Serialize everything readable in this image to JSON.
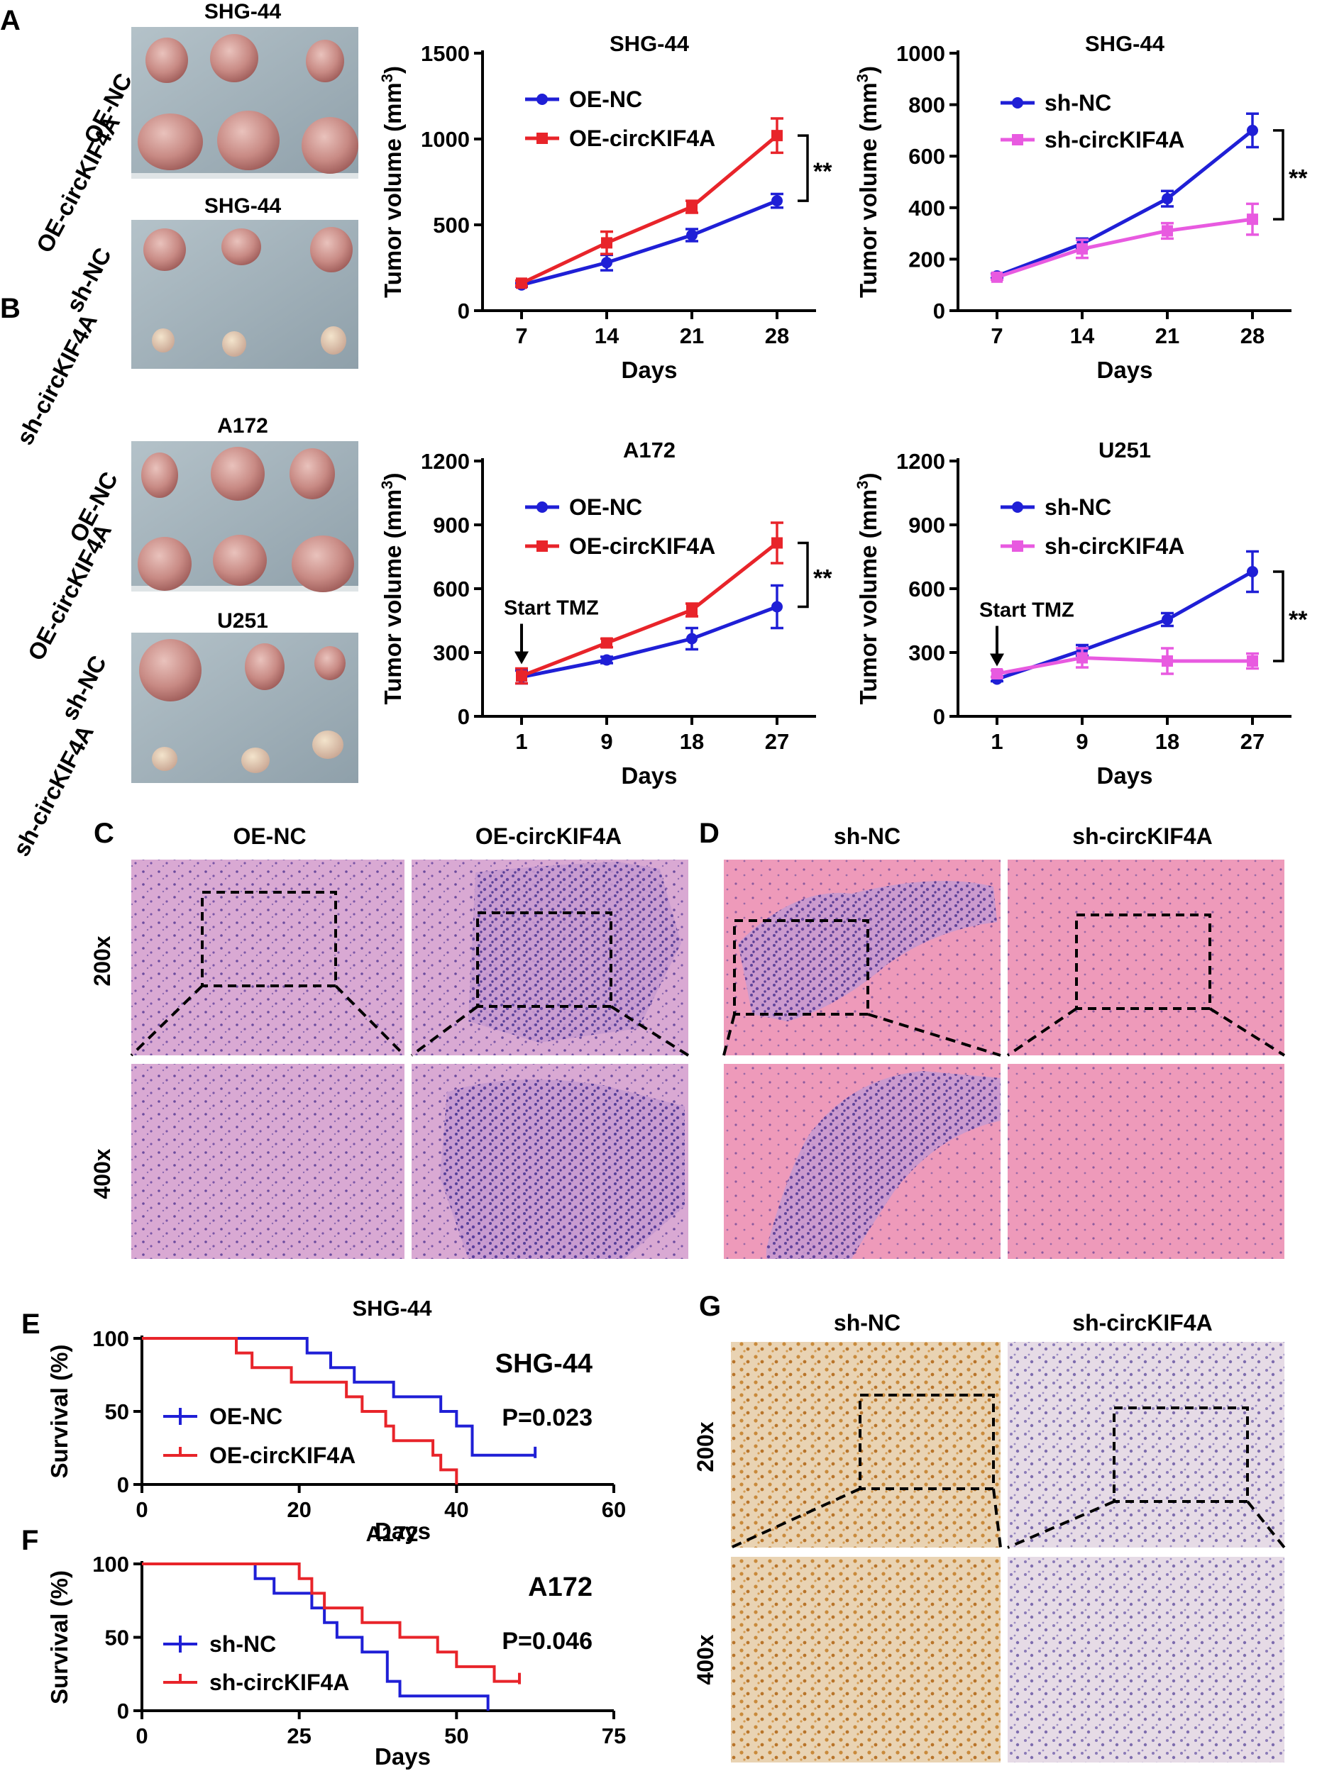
{
  "panels": {
    "A": "A",
    "B": "B",
    "C": "C",
    "D": "D",
    "E": "E",
    "F": "F",
    "G": "G"
  },
  "colors": {
    "blue": "#1f1fd6",
    "red": "#e8242a",
    "pink": "#e85ae0",
    "black": "#000000"
  },
  "photos": {
    "a1": {
      "title": "SHG-44",
      "row1": "OE-NC",
      "row2": "OE-circKIF4A"
    },
    "a2": {
      "title": "SHG-44",
      "row1": "sh-NC",
      "row2": "sh-circKIF4A"
    },
    "b1": {
      "title": "A172",
      "row1": "OE-NC",
      "row2": "OE-circKIF4A"
    },
    "b2": {
      "title": "U251",
      "row1": "sh-NC",
      "row2": "sh-circKIF4A"
    }
  },
  "histology": {
    "c": {
      "col1": "OE-NC",
      "col2": "OE-circKIF4A",
      "row1": "200x",
      "row2": "400x"
    },
    "d": {
      "col1": "sh-NC",
      "col2": "sh-circKIF4A"
    },
    "g": {
      "col1": "sh-NC",
      "col2": "sh-circKIF4A",
      "row1": "200x",
      "row2": "400x"
    }
  },
  "chart_data": [
    {
      "id": "A-left",
      "type": "line",
      "title": "SHG-44",
      "xlabel": "Days",
      "ylabel": "Tumor volume (mm",
      "ylabel_sup": "3",
      "ylabel_close": ")",
      "x": [
        7,
        14,
        21,
        28
      ],
      "ylim": [
        0,
        1500
      ],
      "yticks": [
        0,
        500,
        1000,
        1500
      ],
      "series": [
        {
          "name": "OE-NC",
          "color": "blue",
          "values": [
            150,
            280,
            440,
            640
          ],
          "err": [
            10,
            45,
            35,
            40
          ]
        },
        {
          "name": "OE-circKIF4A",
          "color": "red",
          "values": [
            160,
            395,
            605,
            1020
          ],
          "err": [
            15,
            65,
            35,
            100
          ]
        }
      ],
      "significance": "**"
    },
    {
      "id": "A-right",
      "type": "line",
      "title": "SHG-44",
      "xlabel": "Days",
      "ylabel": "Tumor volume (mm",
      "ylabel_sup": "3",
      "ylabel_close": ")",
      "x": [
        7,
        14,
        21,
        28
      ],
      "ylim": [
        0,
        1000
      ],
      "yticks": [
        0,
        200,
        400,
        600,
        800,
        1000
      ],
      "series": [
        {
          "name": "sh-NC",
          "color": "blue",
          "values": [
            135,
            260,
            435,
            700
          ],
          "err": [
            8,
            20,
            30,
            65
          ]
        },
        {
          "name": "sh-circKIF4A",
          "color": "pink",
          "values": [
            130,
            240,
            310,
            355
          ],
          "err": [
            10,
            35,
            30,
            60
          ]
        }
      ],
      "significance": "**"
    },
    {
      "id": "B-left",
      "type": "line",
      "title": "A172",
      "xlabel": "Days",
      "ylabel": "Tumor volume (mm",
      "ylabel_sup": "3",
      "ylabel_close": ")",
      "x": [
        1,
        9,
        18,
        27
      ],
      "ylim": [
        0,
        1200
      ],
      "yticks": [
        0,
        300,
        600,
        900,
        1200
      ],
      "series": [
        {
          "name": "OE-NC",
          "color": "blue",
          "values": [
            185,
            265,
            365,
            515
          ],
          "err": [
            30,
            15,
            50,
            100
          ]
        },
        {
          "name": "OE-circKIF4A",
          "color": "red",
          "values": [
            190,
            345,
            500,
            815
          ],
          "err": [
            35,
            20,
            30,
            95
          ]
        }
      ],
      "significance": "**",
      "annotation": "Start TMZ"
    },
    {
      "id": "B-right",
      "type": "line",
      "title": "U251",
      "xlabel": "Days",
      "ylabel": "Tumor volume (mm",
      "ylabel_sup": "3",
      "ylabel_close": ")",
      "x": [
        1,
        9,
        18,
        27
      ],
      "ylim": [
        0,
        1200
      ],
      "yticks": [
        0,
        300,
        600,
        900,
        1200
      ],
      "series": [
        {
          "name": "sh-NC",
          "color": "blue",
          "values": [
            175,
            310,
            455,
            680
          ],
          "err": [
            10,
            25,
            30,
            95
          ]
        },
        {
          "name": "sh-circKIF4A",
          "color": "pink",
          "values": [
            200,
            275,
            260,
            260
          ],
          "err": [
            15,
            45,
            60,
            35
          ]
        }
      ],
      "significance": "**",
      "annotation": "Start TMZ"
    },
    {
      "id": "E",
      "type": "line",
      "subtype": "survival",
      "title": "SHG-44",
      "header": "SHG-44",
      "xlabel": "Days",
      "ylabel": "Survival (%)",
      "xlim": [
        0,
        60
      ],
      "xticks": [
        0,
        20,
        40,
        60
      ],
      "ylim": [
        0,
        100
      ],
      "yticks": [
        0,
        50,
        100
      ],
      "pvalue": "P=0.023",
      "series": [
        {
          "name": "OE-NC",
          "color": "blue",
          "steps": [
            [
              0,
              100
            ],
            [
              21,
              100
            ],
            [
              21,
              90
            ],
            [
              24,
              90
            ],
            [
              24,
              80
            ],
            [
              27,
              80
            ],
            [
              27,
              70
            ],
            [
              32,
              70
            ],
            [
              32,
              60
            ],
            [
              38,
              60
            ],
            [
              38,
              50
            ],
            [
              40,
              50
            ],
            [
              40,
              40
            ],
            [
              42,
              40
            ],
            [
              42,
              20
            ],
            [
              50,
              20
            ]
          ],
          "censor": [
            [
              50,
              20
            ]
          ]
        },
        {
          "name": "OE-circKIF4A",
          "color": "red",
          "steps": [
            [
              0,
              100
            ],
            [
              12,
              100
            ],
            [
              12,
              90
            ],
            [
              14,
              90
            ],
            [
              14,
              80
            ],
            [
              19,
              80
            ],
            [
              19,
              70
            ],
            [
              26,
              70
            ],
            [
              26,
              60
            ],
            [
              28,
              60
            ],
            [
              28,
              50
            ],
            [
              31,
              50
            ],
            [
              31,
              40
            ],
            [
              32,
              40
            ],
            [
              32,
              30
            ],
            [
              37,
              30
            ],
            [
              37,
              20
            ],
            [
              38,
              20
            ],
            [
              38,
              10
            ],
            [
              40,
              10
            ],
            [
              40,
              0
            ]
          ],
          "censor": []
        }
      ]
    },
    {
      "id": "F",
      "type": "line",
      "subtype": "survival",
      "title": "A172",
      "header": "A172",
      "xlabel": "Days",
      "ylabel": "Survival (%)",
      "xlim": [
        0,
        75
      ],
      "xticks": [
        0,
        25,
        50,
        75
      ],
      "ylim": [
        0,
        100
      ],
      "yticks": [
        0,
        50,
        100
      ],
      "pvalue": "P=0.046",
      "series": [
        {
          "name": "sh-NC",
          "color": "blue",
          "steps": [
            [
              0,
              100
            ],
            [
              18,
              100
            ],
            [
              18,
              90
            ],
            [
              21,
              90
            ],
            [
              21,
              80
            ],
            [
              27,
              80
            ],
            [
              27,
              70
            ],
            [
              29,
              70
            ],
            [
              29,
              60
            ],
            [
              31,
              60
            ],
            [
              31,
              50
            ],
            [
              35,
              50
            ],
            [
              35,
              40
            ],
            [
              39,
              40
            ],
            [
              39,
              20
            ],
            [
              41,
              20
            ],
            [
              41,
              10
            ],
            [
              55,
              10
            ],
            [
              55,
              0
            ]
          ],
          "censor": []
        },
        {
          "name": "sh-circKIF4A",
          "color": "red",
          "steps": [
            [
              0,
              100
            ],
            [
              25,
              100
            ],
            [
              25,
              90
            ],
            [
              27,
              90
            ],
            [
              27,
              80
            ],
            [
              29,
              80
            ],
            [
              29,
              70
            ],
            [
              35,
              70
            ],
            [
              35,
              60
            ],
            [
              41,
              60
            ],
            [
              41,
              50
            ],
            [
              47,
              50
            ],
            [
              47,
              40
            ],
            [
              50,
              40
            ],
            [
              50,
              30
            ],
            [
              56,
              30
            ],
            [
              56,
              20
            ],
            [
              60,
              20
            ]
          ],
          "censor": [
            [
              60,
              20
            ]
          ]
        }
      ]
    }
  ]
}
